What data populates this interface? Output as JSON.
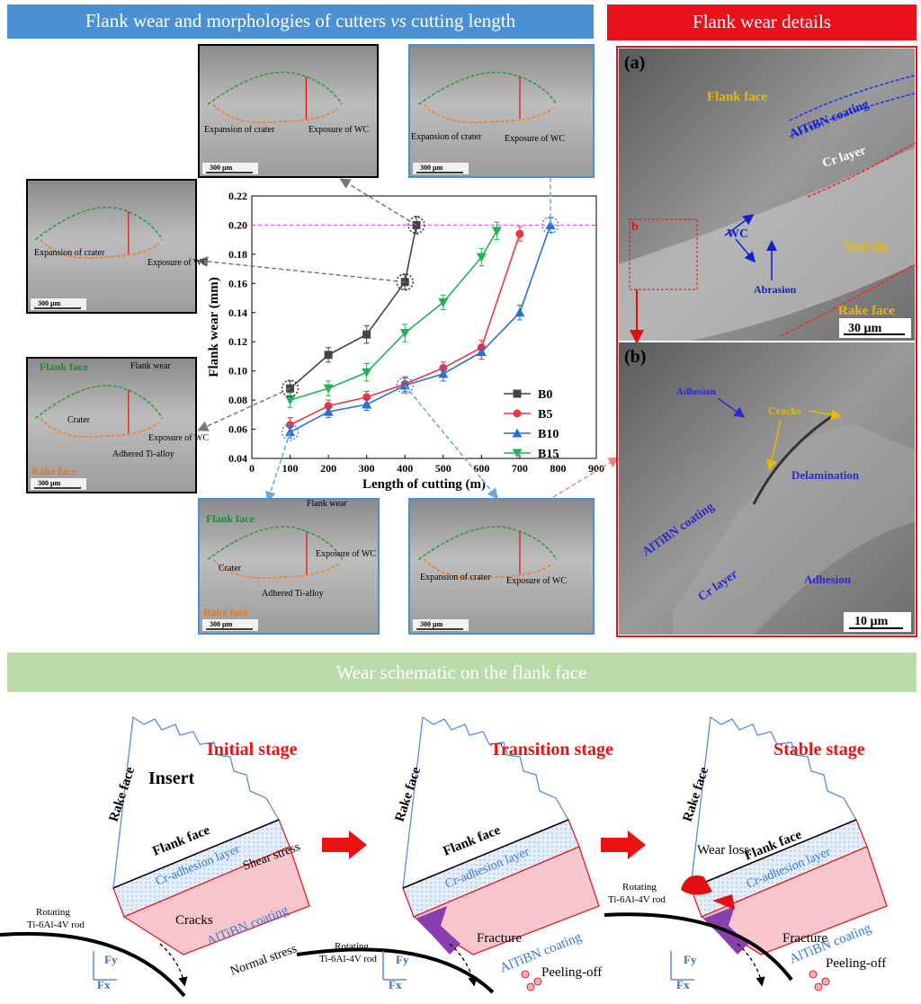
{
  "chart_data": {
    "type": "line",
    "xlabel": "Length of cutting (m)",
    "ylabel": "Flank wear (mm)",
    "xlim": [
      0,
      900
    ],
    "xticks": [
      0,
      100,
      200,
      300,
      400,
      500,
      600,
      700,
      800,
      900
    ],
    "ylim": [
      0.04,
      0.22
    ],
    "yticks": [
      0.04,
      0.06,
      0.08,
      {
        "value": 0.1,
        "label": "0.10"
      },
      0.12,
      0.14,
      0.16,
      0.18,
      {
        "value": 0.2,
        "label": "0.20"
      },
      0.22
    ],
    "threshold": {
      "value": 0.2,
      "color": "#ff44ff"
    },
    "legend": "right",
    "series": [
      {
        "name": "B0",
        "color": "#444444",
        "marker": "square",
        "x": [
          100,
          200,
          300,
          400,
          430
        ],
        "values": [
          0.088,
          0.111,
          0.125,
          0.161,
          0.2
        ],
        "errors": [
          0.005,
          0.005,
          0.006,
          0.005,
          0.006
        ]
      },
      {
        "name": "B5",
        "color": "#e8383d",
        "marker": "circle",
        "x": [
          100,
          200,
          300,
          400,
          500,
          600,
          700
        ],
        "values": [
          0.063,
          0.076,
          0.082,
          0.091,
          0.102,
          0.116,
          0.194
        ],
        "errors": [
          0.005,
          0.004,
          0.004,
          0.005,
          0.004,
          0.005,
          0.005
        ]
      },
      {
        "name": "B10",
        "color": "#2a6fd6",
        "marker": "triangle-up",
        "x": [
          100,
          200,
          300,
          400,
          500,
          600,
          700,
          780
        ],
        "values": [
          0.058,
          0.072,
          0.077,
          0.09,
          0.098,
          0.113,
          0.14,
          0.2
        ],
        "errors": [
          0.004,
          0.004,
          0.004,
          0.005,
          0.005,
          0.005,
          0.005,
          0.005
        ]
      },
      {
        "name": "B15",
        "color": "#22b25b",
        "marker": "triangle-down",
        "x": [
          100,
          200,
          300,
          400,
          500,
          600,
          640
        ],
        "values": [
          0.08,
          0.088,
          0.099,
          0.126,
          0.147,
          0.178,
          0.196
        ],
        "errors": [
          0.005,
          0.005,
          0.006,
          0.006,
          0.005,
          0.006,
          0.006
        ]
      }
    ]
  },
  "left_header": {
    "parts": [
      "Flank wear and morphologies of cutters ",
      "vs",
      " cutting length"
    ],
    "color": "#4a90d2"
  },
  "right_header": {
    "text": "Flank wear details",
    "color": "#e8101a"
  },
  "micrographs": [
    {
      "border": "#000000",
      "labels": [
        "Expansion of crater",
        "Exposure of WC",
        "300 µm"
      ]
    },
    {
      "border": "#4a90d2",
      "labels": [
        "Expansion of crater",
        "Exposure of WC",
        "300 µm"
      ]
    },
    {
      "border": "#000000",
      "labels": [
        "Expansion of crater",
        "Exposure of WC",
        "300 µm"
      ]
    },
    {
      "border": "#000000",
      "labels": [
        "Flank face",
        "Flank wear",
        "Crater",
        "Exposure of WC",
        "Rake face",
        "Adhered Ti-alloy",
        "300 µm"
      ]
    },
    {
      "border": "#4a90d2",
      "labels": [
        "Flank face",
        "Flank wear",
        "Crater",
        "Exposure of WC",
        "Adhered Ti-alloy",
        "Rake face",
        "300 µm"
      ]
    },
    {
      "border": "#4a90d2",
      "labels": [
        "Expansion of crater",
        "Exposure of WC",
        "300 µm"
      ]
    }
  ],
  "sem": {
    "panel_a": [
      "(a)",
      "Flank face",
      "AlTiBN coating",
      "Cr  layer",
      "WC",
      "Tool tip",
      "Abrasion",
      "Rake face",
      "30 µm",
      "b"
    ],
    "panel_b": [
      "(b)",
      "Adhesion",
      "Cracks",
      "Delamination",
      "AlTiBN coating",
      "Cr layer",
      "Adhesion",
      "10 µm"
    ]
  },
  "schematic": {
    "title": "Wear schematic on the flank face",
    "color": "#b9dcaa",
    "stages": [
      {
        "labels": [
          "Initial stage",
          "Insert",
          "Rake face",
          "Flank face",
          "Cr-adhesion layer",
          "Shear stress",
          "Cracks",
          "AlTiBN coating",
          "Rotating",
          "Ti-6Al-4V rod",
          "Normal stress",
          "Fy",
          "Fx"
        ]
      },
      {
        "labels": [
          "Transition stage",
          "Rake face",
          "Flank face",
          "Cr-adhesion layer",
          "Fracture",
          "AlTiBN coating",
          "Rotating",
          "Ti-6Al-4V rod",
          "Peeling-off",
          "Fy",
          "Fx"
        ]
      },
      {
        "labels": [
          "Stable stage",
          "Rake face",
          "Wear loss",
          "Flank face",
          "Cr-adhesion layer",
          "Fracture",
          "AlTiBN coating",
          "Rotating",
          "Ti-6Al-4V rod",
          "Peeling-off",
          "Fy",
          "Fx"
        ]
      }
    ]
  }
}
